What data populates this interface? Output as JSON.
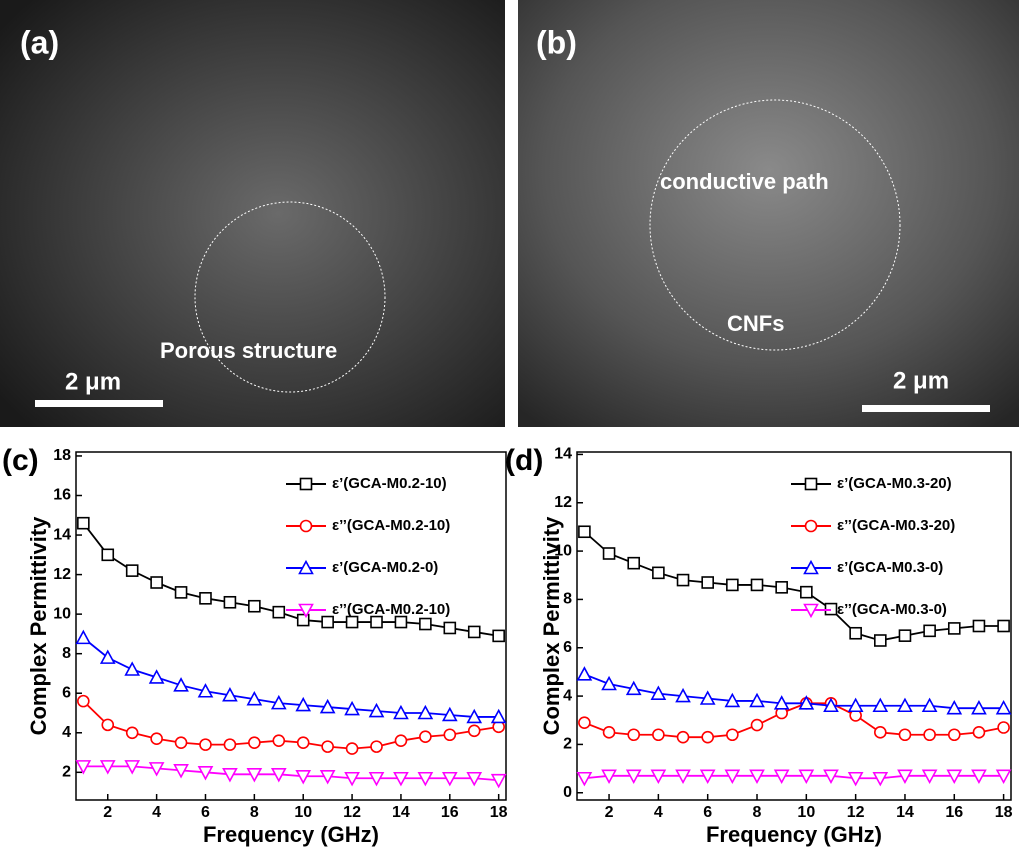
{
  "images": [
    {
      "label": "(a)",
      "annotations": [
        "Porous structure"
      ],
      "scale_bar": "2 μm"
    },
    {
      "label": "(b)",
      "annotations": [
        "conductive path",
        "CNFs"
      ],
      "scale_bar": "2 μm"
    }
  ],
  "chart_data": [
    {
      "type": "line",
      "panel_label": "(c)",
      "x_label": "Frequency (GHz)",
      "y_label": "Complex  Permittivity",
      "x": [
        1,
        2,
        3,
        4,
        5,
        6,
        7,
        8,
        9,
        10,
        11,
        12,
        13,
        14,
        15,
        16,
        17,
        18
      ],
      "xlim": [
        0.7,
        18.3
      ],
      "xticks": [
        2,
        4,
        6,
        8,
        10,
        12,
        14,
        16,
        18
      ],
      "ylim": [
        0.6,
        18.2
      ],
      "yticks": [
        2,
        4,
        6,
        8,
        10,
        12,
        14,
        16,
        18
      ],
      "series": [
        {
          "name": "ε’(GCA-M0.2-10)",
          "color": "#000000",
          "marker": "square",
          "values": [
            14.6,
            13.0,
            12.2,
            11.6,
            11.1,
            10.8,
            10.6,
            10.4,
            10.1,
            9.7,
            9.6,
            9.6,
            9.6,
            9.6,
            9.5,
            9.3,
            9.1,
            8.9
          ]
        },
        {
          "name": "ε’’(GCA-M0.2-10)",
          "color": "#ff0000",
          "marker": "circle",
          "values": [
            5.6,
            4.4,
            4.0,
            3.7,
            3.5,
            3.4,
            3.4,
            3.5,
            3.6,
            3.5,
            3.3,
            3.2,
            3.3,
            3.6,
            3.8,
            3.9,
            4.1,
            4.3
          ]
        },
        {
          "name": "ε’(GCA-M0.2-0)",
          "color": "#0000ff",
          "marker": "triangle-up",
          "values": [
            8.8,
            7.8,
            7.2,
            6.8,
            6.4,
            6.1,
            5.9,
            5.7,
            5.5,
            5.4,
            5.3,
            5.2,
            5.1,
            5.0,
            5.0,
            4.9,
            4.8,
            4.8
          ]
        },
        {
          "name": "ε’’(GCA-M0.2-10)",
          "color": "#ff00ff",
          "marker": "triangle-down",
          "values": [
            2.3,
            2.3,
            2.3,
            2.2,
            2.1,
            2.0,
            1.9,
            1.9,
            1.9,
            1.8,
            1.8,
            1.7,
            1.7,
            1.7,
            1.7,
            1.7,
            1.7,
            1.6
          ]
        }
      ]
    },
    {
      "type": "line",
      "panel_label": "(d)",
      "x_label": "Frequency (GHz)",
      "y_label": "Complex  Permittivity",
      "x": [
        1,
        2,
        3,
        4,
        5,
        6,
        7,
        8,
        9,
        10,
        11,
        12,
        13,
        14,
        15,
        16,
        17,
        18
      ],
      "xlim": [
        0.7,
        18.3
      ],
      "xticks": [
        2,
        4,
        6,
        8,
        10,
        12,
        14,
        16,
        18
      ],
      "ylim": [
        -0.3,
        14.1
      ],
      "yticks": [
        0,
        2,
        4,
        6,
        8,
        10,
        12,
        14
      ],
      "series": [
        {
          "name": "ε’(GCA-M0.3-20)",
          "color": "#000000",
          "marker": "square",
          "values": [
            10.8,
            9.9,
            9.5,
            9.1,
            8.8,
            8.7,
            8.6,
            8.6,
            8.5,
            8.3,
            7.6,
            6.6,
            6.3,
            6.5,
            6.7,
            6.8,
            6.9,
            6.9
          ]
        },
        {
          "name": "ε’’(GCA-M0.3-20)",
          "color": "#ff0000",
          "marker": "circle",
          "values": [
            2.9,
            2.5,
            2.4,
            2.4,
            2.3,
            2.3,
            2.4,
            2.8,
            3.3,
            3.7,
            3.7,
            3.2,
            2.5,
            2.4,
            2.4,
            2.4,
            2.5,
            2.7
          ]
        },
        {
          "name": "ε’(GCA-M0.3-0)",
          "color": "#0000ff",
          "marker": "triangle-up",
          "values": [
            4.9,
            4.5,
            4.3,
            4.1,
            4.0,
            3.9,
            3.8,
            3.8,
            3.7,
            3.7,
            3.6,
            3.6,
            3.6,
            3.6,
            3.6,
            3.5,
            3.5,
            3.5
          ]
        },
        {
          "name": "ε’’(GCA-M0.3-0)",
          "color": "#ff00ff",
          "marker": "triangle-down",
          "values": [
            0.6,
            0.7,
            0.7,
            0.7,
            0.7,
            0.7,
            0.7,
            0.7,
            0.7,
            0.7,
            0.7,
            0.6,
            0.6,
            0.7,
            0.7,
            0.7,
            0.7,
            0.7
          ]
        }
      ]
    }
  ]
}
